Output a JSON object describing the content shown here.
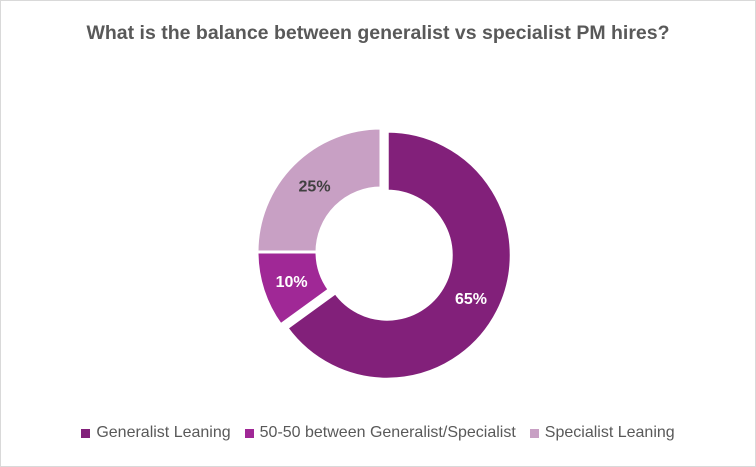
{
  "chart_data": {
    "type": "pie",
    "variant": "donut",
    "title": "What is the balance between generalist vs specialist PM hires?",
    "categories": [
      "Generalist Leaning",
      "50-50 between Generalist/Specialist",
      "Specialist Leaning"
    ],
    "values": [
      65,
      10,
      25
    ],
    "labels": [
      "65%",
      "10%",
      "25%"
    ],
    "colors": [
      "#82207A",
      "#A02896",
      "#C8A0C4"
    ],
    "label_colors": [
      "#ffffff",
      "#ffffff",
      "#404040"
    ],
    "exploded": [
      true,
      false,
      false
    ],
    "legend_position": "bottom"
  }
}
